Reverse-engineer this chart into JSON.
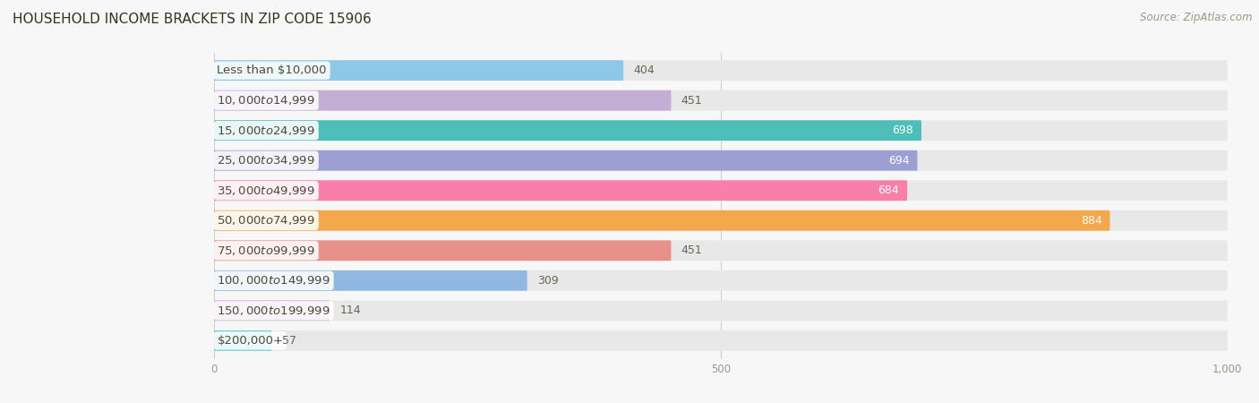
{
  "title": "HOUSEHOLD INCOME BRACKETS IN ZIP CODE 15906",
  "source": "Source: ZipAtlas.com",
  "categories": [
    "Less than $10,000",
    "$10,000 to $14,999",
    "$15,000 to $24,999",
    "$25,000 to $34,999",
    "$35,000 to $49,999",
    "$50,000 to $74,999",
    "$75,000 to $99,999",
    "$100,000 to $149,999",
    "$150,000 to $199,999",
    "$200,000+"
  ],
  "values": [
    404,
    451,
    698,
    694,
    684,
    884,
    451,
    309,
    114,
    57
  ],
  "bar_colors": [
    "#8dc8e8",
    "#c3aed6",
    "#4dbfb8",
    "#9d9ed4",
    "#f77faa",
    "#f4a84e",
    "#e8918a",
    "#90b8e0",
    "#c3aed6",
    "#6ecfcf"
  ],
  "value_inside": [
    false,
    false,
    true,
    true,
    true,
    true,
    false,
    false,
    false,
    false
  ],
  "xlim": [
    0,
    1000
  ],
  "xtick_labels": [
    "0",
    "500",
    "1,000"
  ],
  "xtick_vals": [
    0,
    500,
    1000
  ],
  "background_color": "#f7f7f7",
  "bar_bg_color": "#e8e8e8",
  "title_fontsize": 11,
  "source_fontsize": 8.5,
  "label_fontsize": 9.5,
  "value_fontsize": 9,
  "tick_fontsize": 8.5,
  "bar_height": 0.68,
  "bar_gap": 1.0
}
